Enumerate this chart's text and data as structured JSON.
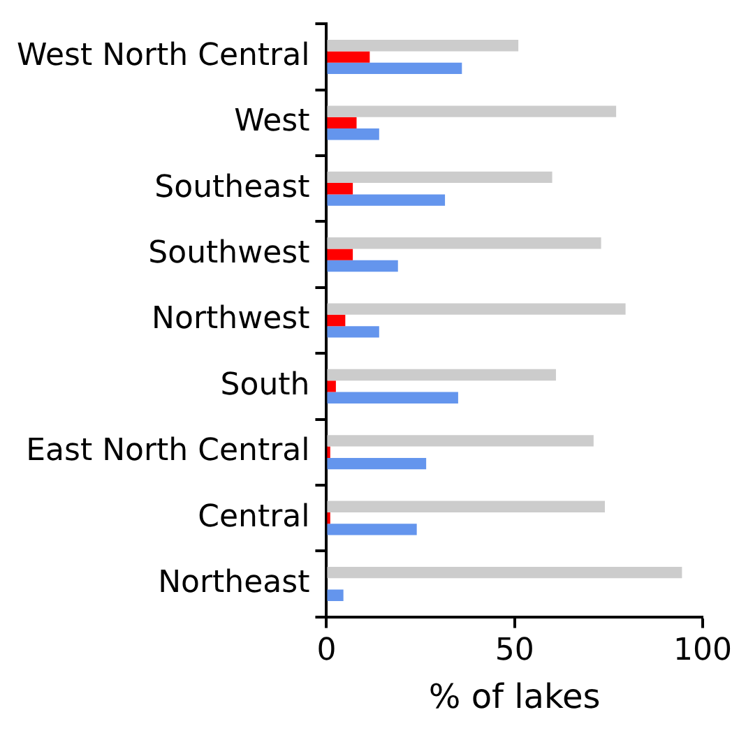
{
  "chart_data": {
    "type": "bar",
    "orientation": "horizontal",
    "xlabel": "% of lakes",
    "categories": [
      "West North Central",
      "West",
      "Southeast",
      "Southwest",
      "Northwest",
      "South",
      "East North Central",
      "Central",
      "Northeast"
    ],
    "series": [
      {
        "color": "#cccccc",
        "values": [
          51,
          77,
          60,
          73,
          79.5,
          61,
          71,
          74,
          94.5
        ]
      },
      {
        "color": "#ff0000",
        "values": [
          11.5,
          8,
          7,
          7,
          5,
          2.5,
          1,
          1,
          0
        ]
      },
      {
        "color": "#6495ed",
        "values": [
          36,
          14,
          31.5,
          19,
          14,
          35,
          26.5,
          24,
          4.5
        ]
      }
    ],
    "xlim": [
      0,
      100
    ],
    "xticks": [
      0,
      50,
      100
    ],
    "grid": false,
    "legend": false
  }
}
